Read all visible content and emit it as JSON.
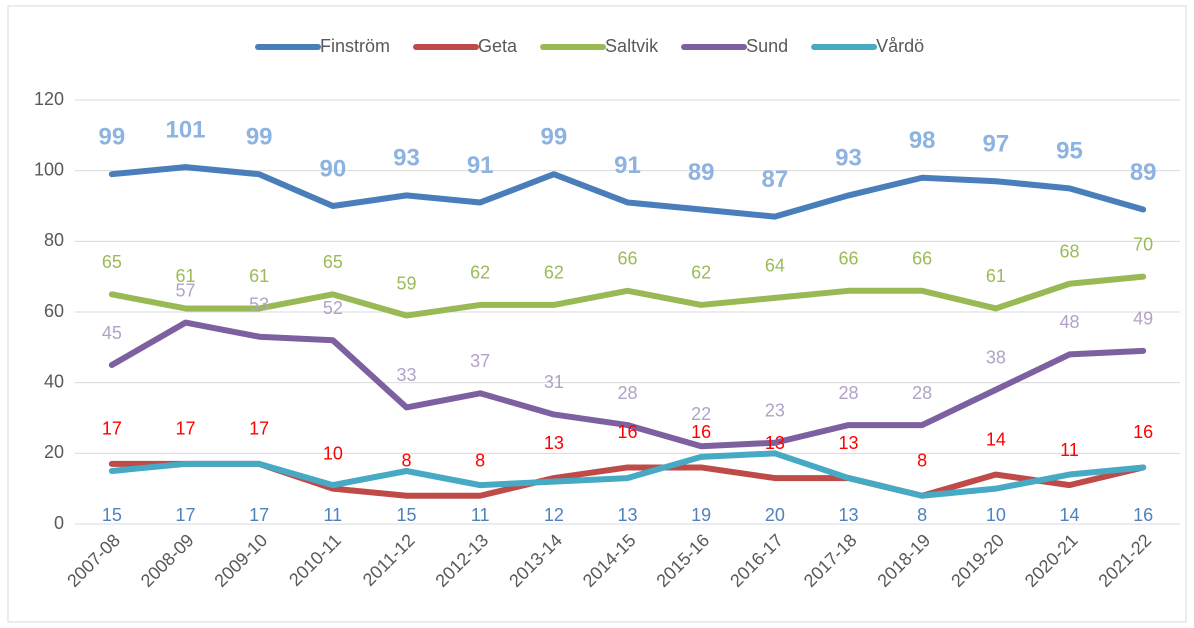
{
  "chart_data": {
    "type": "line",
    "categories": [
      "2007-08",
      "2008-09",
      "2009-10",
      "2010-11",
      "2011-12",
      "2012-13",
      "2013-14",
      "2014-15",
      "2015-16",
      "2016-17",
      "2017-18",
      "2018-19",
      "2019-20",
      "2020-21",
      "2021-22"
    ],
    "series": [
      {
        "name": "Finström",
        "color": "#4a7ebb",
        "label_color": "#8db3e2",
        "values": [
          99,
          101,
          99,
          90,
          93,
          91,
          99,
          91,
          89,
          87,
          93,
          98,
          97,
          95,
          89
        ]
      },
      {
        "name": "Geta",
        "color": "#be4b48",
        "label_color": "#ff0000",
        "values": [
          17,
          17,
          17,
          10,
          8,
          8,
          13,
          16,
          16,
          13,
          13,
          8,
          14,
          11,
          16
        ]
      },
      {
        "name": "Saltvik",
        "color": "#98b954",
        "label_color": "#9bbb59",
        "values": [
          65,
          61,
          61,
          65,
          59,
          62,
          62,
          66,
          62,
          64,
          66,
          66,
          61,
          68,
          70
        ]
      },
      {
        "name": "Sund",
        "color": "#7d60a0",
        "label_color": "#b3a2c7",
        "values": [
          45,
          57,
          53,
          52,
          33,
          37,
          31,
          28,
          22,
          23,
          28,
          28,
          38,
          48,
          49
        ]
      },
      {
        "name": "Vårdö",
        "color": "#46aac5",
        "label_color": "#4f81bd",
        "values": [
          15,
          17,
          17,
          11,
          15,
          11,
          12,
          13,
          19,
          20,
          13,
          8,
          10,
          14,
          16
        ]
      }
    ],
    "ylim": [
      0,
      120
    ],
    "yticks": [
      0,
      20,
      40,
      60,
      80,
      100,
      120
    ],
    "grid": true,
    "legend": "top"
  }
}
